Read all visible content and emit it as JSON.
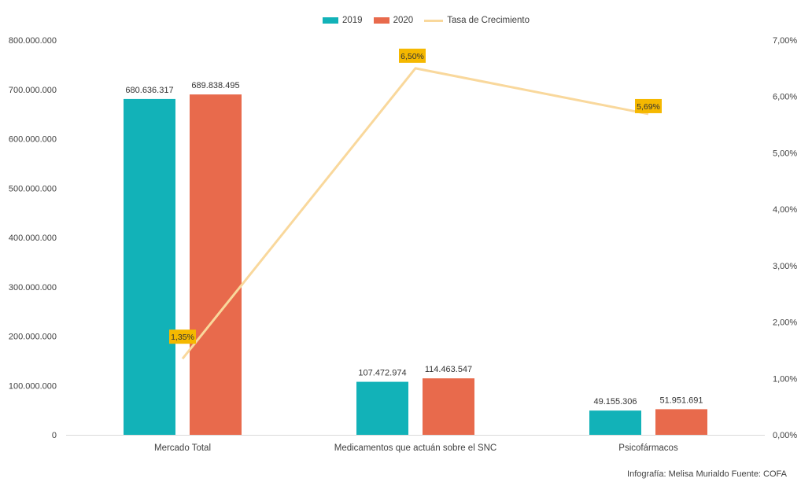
{
  "chart_data": {
    "type": "bar",
    "categories": [
      "Mercado Total",
      "Medicamentos que actuán sobre el SNC",
      "Psicofármacos"
    ],
    "series": [
      {
        "name": "2019",
        "kind": "bar",
        "axis": "left",
        "color": "#12b2b8",
        "values": [
          680636317,
          107472974,
          49155306
        ],
        "labels": [
          "680.636.317",
          "107.472.974",
          "49.155.306"
        ]
      },
      {
        "name": "2020",
        "kind": "bar",
        "axis": "left",
        "color": "#e86a4c",
        "values": [
          689838495,
          114463547,
          51951691
        ],
        "labels": [
          "689.838.495",
          "114.463.547",
          "51.951.691"
        ]
      },
      {
        "name": "Tasa de Crecimiento",
        "kind": "line",
        "axis": "right",
        "color": "#f9d89c",
        "values": [
          1.35,
          6.5,
          5.69
        ],
        "labels": [
          "1,35%",
          "6,50%",
          "5,69%"
        ]
      }
    ],
    "left_axis": {
      "ylim": [
        0,
        800000000
      ],
      "ticks": [
        0,
        100000000,
        200000000,
        300000000,
        400000000,
        500000000,
        600000000,
        700000000,
        800000000
      ],
      "tick_labels": [
        "0",
        "100.000.000",
        "200.000.000",
        "300.000.000",
        "400.000.000",
        "500.000.000",
        "600.000.000",
        "700.000.000",
        "800.000.000"
      ]
    },
    "right_axis": {
      "ylim": [
        0,
        7
      ],
      "ticks": [
        0,
        1,
        2,
        3,
        4,
        5,
        6,
        7
      ],
      "tick_labels": [
        "0,00%",
        "1,00%",
        "2,00%",
        "3,00%",
        "4,00%",
        "5,00%",
        "6,00%",
        "7,00%"
      ]
    },
    "label_box_color": "#f5b800",
    "grid": false,
    "legend_position": "top"
  },
  "legend": {
    "items": [
      {
        "label": "2019",
        "color": "#12b2b8",
        "kind": "bar"
      },
      {
        "label": "2020",
        "color": "#e86a4c",
        "kind": "bar"
      },
      {
        "label": "Tasa de Crecimiento",
        "color": "#f9d89c",
        "kind": "line"
      }
    ]
  },
  "footer": {
    "credit": "Infografía: Melisa Murialdo Fuente: COFA"
  }
}
